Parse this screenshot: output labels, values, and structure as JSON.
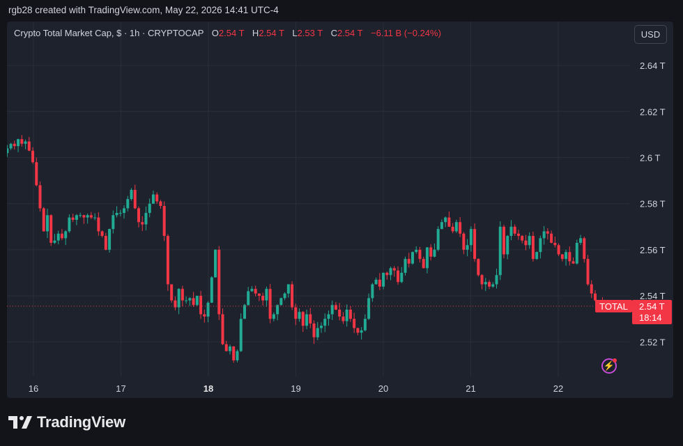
{
  "header": {
    "text": "rgb28 created with TradingView.com, May 22, 2026 14:41 UTC-4"
  },
  "legend": {
    "title": "Crypto Total Market Cap, $ · 1h · CRYPTOCAP",
    "o_label": "O",
    "o_value": "2.54 T",
    "h_label": "H",
    "h_value": "2.54 T",
    "l_label": "L",
    "l_value": "2.53 T",
    "c_label": "C",
    "c_value": "2.54 T",
    "change": "−6.11 B (−0.24%)"
  },
  "currency_button": "USD",
  "price_tag": {
    "symbol": "TOTAL",
    "price": "2.54 T",
    "countdown": "18:14"
  },
  "footer": {
    "brand": "TradingView"
  },
  "icons": {
    "logo": "tradingview-logo-icon",
    "bolt": "lightning-bolt-icon"
  },
  "colors": {
    "up": "#22ab94",
    "down": "#f23645",
    "background": "#1e222d",
    "grid": "#2a2e39",
    "accent": "#c74bd6"
  },
  "chart_data": {
    "type": "candlestick",
    "interval": "1h",
    "y_unit": "T",
    "ylim": [
      2.505,
      2.65
    ],
    "y_ticks": [
      "2.64 T",
      "2.62 T",
      "2.6 T",
      "2.58 T",
      "2.56 T",
      "2.54 T",
      "2.52 T"
    ],
    "y_tick_values": [
      2.64,
      2.62,
      2.6,
      2.58,
      2.56,
      2.54,
      2.52
    ],
    "x_ticks": [
      "16",
      "17",
      "18",
      "19",
      "20",
      "21",
      "22"
    ],
    "x_tick_days": [
      16,
      17,
      18,
      19,
      20,
      21,
      22
    ],
    "bold_x_tick": "18",
    "x_start_day": 15.7,
    "last_price": 2.5355,
    "closes": [
      2.604,
      2.606,
      2.605,
      2.608,
      2.606,
      2.607,
      2.603,
      2.598,
      2.588,
      2.578,
      2.568,
      2.575,
      2.563,
      2.564,
      2.567,
      2.565,
      2.568,
      2.574,
      2.573,
      2.575,
      2.575,
      2.574,
      2.575,
      2.574,
      2.574,
      2.568,
      2.566,
      2.56,
      2.569,
      2.575,
      2.576,
      2.576,
      2.578,
      2.582,
      2.586,
      2.578,
      2.572,
      2.571,
      2.576,
      2.58,
      2.584,
      2.581,
      2.579,
      2.566,
      2.545,
      2.538,
      2.535,
      2.543,
      2.538,
      2.538,
      2.539,
      2.536,
      2.54,
      2.532,
      2.531,
      2.537,
      2.548,
      2.56,
      2.532,
      2.519,
      2.516,
      2.518,
      2.512,
      2.516,
      2.53,
      2.536,
      2.542,
      2.543,
      2.541,
      2.54,
      2.538,
      2.543,
      2.53,
      2.532,
      2.536,
      2.539,
      2.541,
      2.545,
      2.535,
      2.53,
      2.533,
      2.527,
      2.532,
      2.528,
      2.522,
      2.526,
      2.527,
      2.53,
      2.532,
      2.536,
      2.534,
      2.531,
      2.529,
      2.534,
      2.53,
      2.526,
      2.524,
      2.525,
      2.53,
      2.539,
      2.545,
      2.547,
      2.544,
      2.55,
      2.549,
      2.552,
      2.551,
      2.546,
      2.55,
      2.556,
      2.554,
      2.559,
      2.56,
      2.556,
      2.552,
      2.561,
      2.557,
      2.56,
      2.569,
      2.572,
      2.574,
      2.57,
      2.568,
      2.572,
      2.567,
      2.56,
      2.562,
      2.569,
      2.556,
      2.549,
      2.545,
      2.546,
      2.544,
      2.545,
      2.549,
      2.57,
      2.558,
      2.566,
      2.57,
      2.567,
      2.566,
      2.564,
      2.562,
      2.566,
      2.556,
      2.559,
      2.565,
      2.568,
      2.567,
      2.563,
      2.562,
      2.558,
      2.556,
      2.559,
      2.555,
      2.554,
      2.563,
      2.565,
      2.556,
      2.545,
      2.541,
      2.538,
      2.538,
      2.535
    ]
  }
}
